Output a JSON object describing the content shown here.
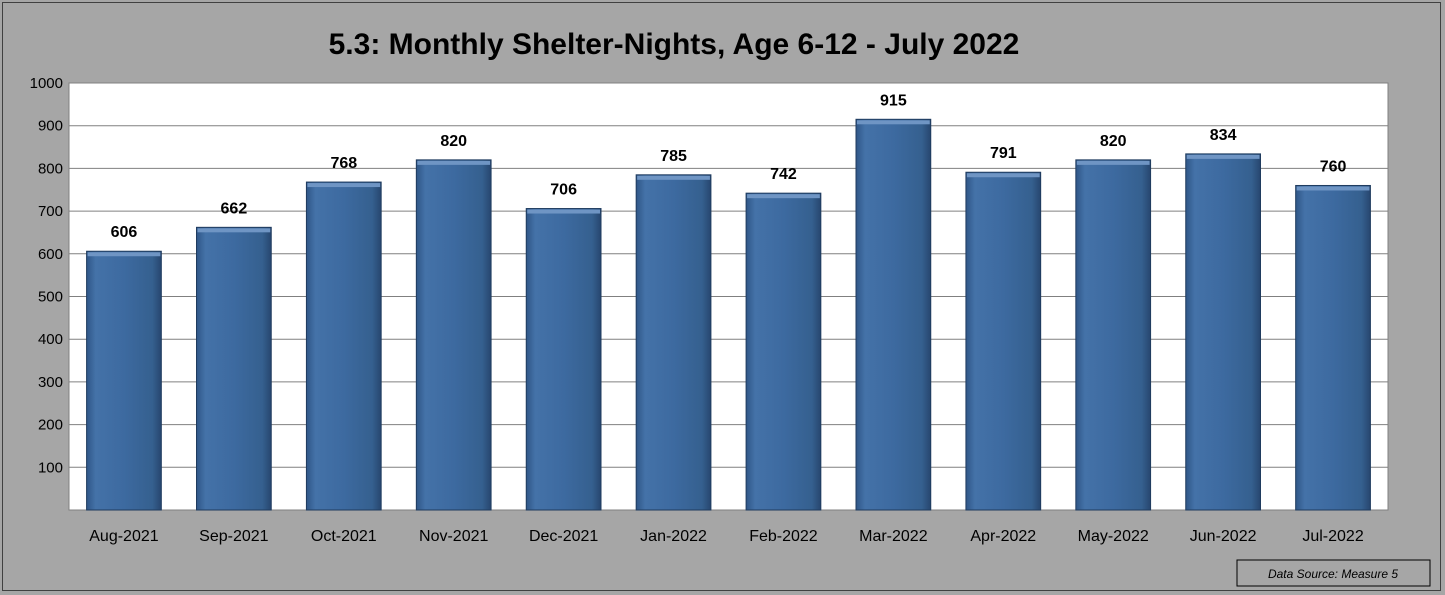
{
  "chart_data": {
    "type": "bar",
    "title": "5.3: Monthly Shelter-Nights, Age 6-12 - July 2022",
    "categories": [
      "Aug-2021",
      "Sep-2021",
      "Oct-2021",
      "Nov-2021",
      "Dec-2021",
      "Jan-2022",
      "Feb-2022",
      "Mar-2022",
      "Apr-2022",
      "May-2022",
      "Jun-2022",
      "Jul-2022"
    ],
    "values": [
      606,
      662,
      768,
      820,
      706,
      785,
      742,
      915,
      791,
      820,
      834,
      760
    ],
    "yticks": [
      "100",
      "200",
      "300",
      "400",
      "500",
      "600",
      "700",
      "800",
      "900",
      "1000"
    ],
    "ylim": [
      0,
      1000
    ],
    "grid": true,
    "legend": "none",
    "data_labels": true,
    "bar_color": "#3a6599",
    "plot_background": "#ffffff",
    "chart_background": "#a6a6a6"
  },
  "source_note": "Data Source: Measure 5"
}
